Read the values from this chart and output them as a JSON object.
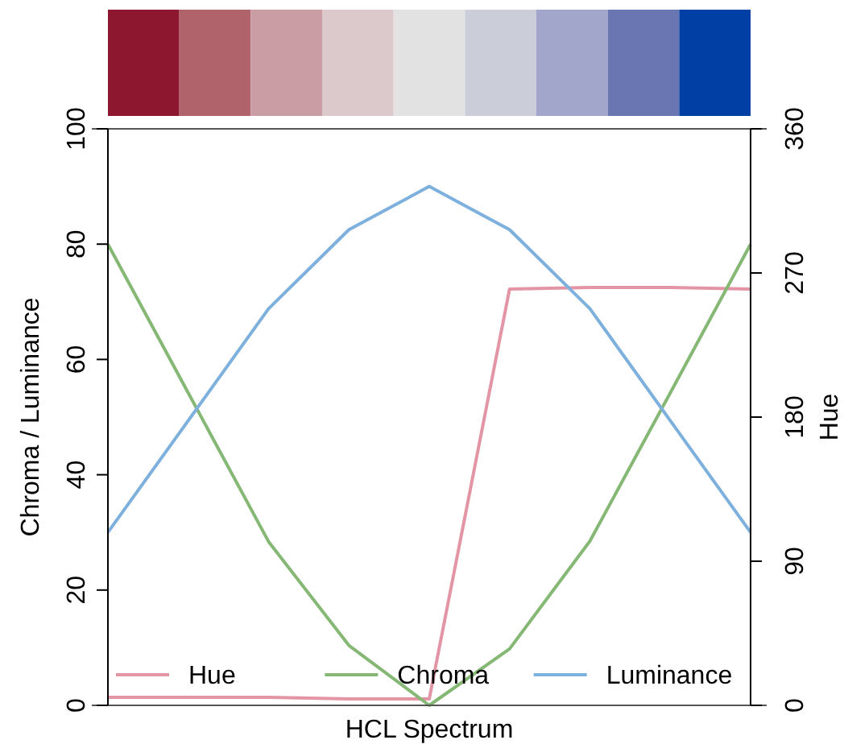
{
  "chart_data": {
    "type": "line",
    "xlabel": "HCL Spectrum",
    "ylabel": "Chroma / Luminance",
    "y2label": "Hue",
    "categories": [
      null,
      null,
      null,
      null,
      null,
      null,
      null,
      null,
      null
    ],
    "colors": [
      "#8e1730",
      "#b0636b",
      "#ca9ca4",
      "#dcc9cc",
      "#e2e2e2",
      "#cbcdd9",
      "#a2a6cb",
      "#6a76b2",
      "#023fa5"
    ],
    "series": [
      {
        "name": "Hue",
        "color": "#e495a5",
        "axis": "y2",
        "values": [
          5,
          5,
          5,
          4,
          4,
          260,
          261,
          261,
          260
        ]
      },
      {
        "name": "Chroma",
        "color": "#86b875",
        "values": [
          80,
          54.2,
          28.4,
          10.4,
          0,
          9.8,
          28.5,
          54.2,
          80
        ]
      },
      {
        "name": "Luminance",
        "color": "#7db0dd",
        "values": [
          30,
          49.4,
          68.8,
          82.5,
          90,
          82.5,
          68.8,
          49.4,
          30
        ]
      }
    ],
    "ylim": [
      0,
      100
    ],
    "yticks": [
      0,
      20,
      40,
      60,
      80,
      100
    ],
    "y2lim": [
      0,
      360
    ],
    "y2ticks": [
      0,
      90,
      180,
      270,
      360
    ],
    "legend": "bottom",
    "marker": "none",
    "line_style": "solid",
    "grid": false
  }
}
